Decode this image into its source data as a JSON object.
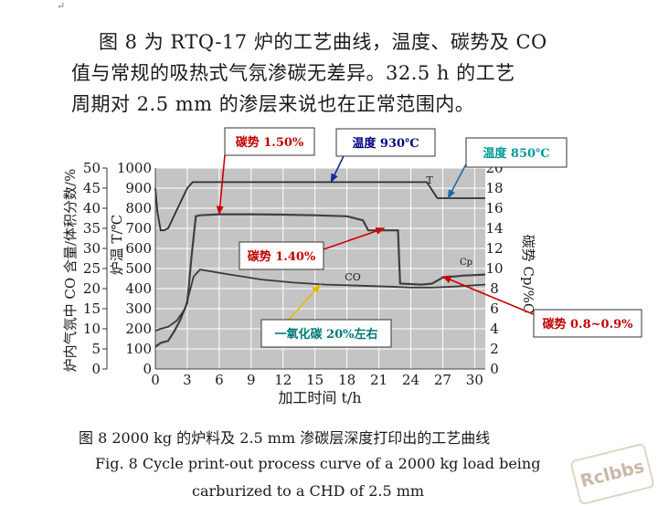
{
  "doc": {
    "para_mark": "↵",
    "lines": [
      "图 8 为 RTQ-17 炉的工艺曲线，温度、碳势及 CO",
      "值与常规的吸热式气氛渗碳无差异。32.5 h 的工艺",
      "周期对 2.5 mm 的渗层来说也在正常范围内。"
    ],
    "caption_cn": "图 8   2000 kg 的炉料及 2.5 mm 渗碳层深度打印出的工艺曲线",
    "caption_en_1": "Fig. 8   Cycle print-out process curve of a 2000 kg load being",
    "caption_en_2": "carburized to a CHD of 2.5 mm",
    "watermark": "Rclbbs"
  },
  "chart_data": {
    "type": "line",
    "xlabel": "加工时间 t/h",
    "ylabel_left_outer": "炉内气氛中 CO 含量/体积分数/%",
    "ylabel_left_inner": "炉温 T/℃",
    "ylabel_right": "碳势 Cp/%C",
    "x_ticks": [
      0,
      3,
      6,
      9,
      12,
      15,
      18,
      21,
      24,
      27,
      30
    ],
    "xlim": [
      0,
      31
    ],
    "y_temp_ticks": [
      0,
      100,
      200,
      300,
      400,
      500,
      600,
      700,
      800,
      900,
      1000
    ],
    "y_temp_lim": [
      0,
      1000
    ],
    "y_co_ticks": [
      0,
      5,
      10,
      15,
      20,
      25,
      30,
      35,
      40,
      45,
      50
    ],
    "y_co_lim": [
      0,
      50
    ],
    "y_cp_ticks": [
      0,
      2,
      4,
      6,
      8,
      10,
      12,
      14,
      16,
      18,
      20
    ],
    "y_cp_lim": [
      0,
      20
    ],
    "grid": true,
    "background": "#c4c4c4",
    "series": [
      {
        "name": "T",
        "axis": "temp",
        "color": "#303030",
        "x": [
          0,
          0.2,
          0.5,
          0.8,
          1.2,
          2.0,
          3.0,
          3.5,
          22.5,
          25.5,
          26.5,
          31
        ],
        "y": [
          900,
          780,
          690,
          690,
          700,
          790,
          900,
          930,
          930,
          930,
          850,
          850
        ]
      },
      {
        "name": "Cp",
        "axis": "temp",
        "color": "#404040",
        "x": [
          0,
          0.5,
          1.2,
          1.8,
          2.3,
          3.0,
          3.4,
          3.8,
          4.2,
          6,
          9,
          12,
          15,
          18,
          19.5,
          20,
          21,
          22.8,
          23,
          25,
          26,
          27,
          27.5,
          28,
          29,
          31
        ],
        "y": [
          110,
          130,
          140,
          190,
          240,
          330,
          560,
          760,
          765,
          770,
          770,
          768,
          765,
          760,
          740,
          690,
          690,
          690,
          425,
          420,
          425,
          455,
          460,
          460,
          465,
          470
        ]
      },
      {
        "name": "CO",
        "axis": "temp",
        "color": "#3a3a3a",
        "x": [
          0,
          0.5,
          1.2,
          2.0,
          2.8,
          3.6,
          4.2,
          7,
          10,
          13,
          16,
          19,
          22,
          24,
          26,
          28,
          31
        ],
        "y": [
          190,
          200,
          210,
          240,
          300,
          460,
          495,
          470,
          445,
          430,
          420,
          415,
          410,
          405,
          405,
          410,
          420
        ]
      }
    ],
    "series_labels": [
      "T",
      "CO",
      "Cp"
    ],
    "annotations": [
      {
        "text": "碳势 1.50%",
        "color": "#c00000",
        "target": [
          6.0,
          770
        ]
      },
      {
        "text": "温度 930℃",
        "color": "#000080",
        "target": [
          16.5,
          930
        ]
      },
      {
        "text": "温度 850℃",
        "color": "#009999",
        "target": [
          27.5,
          850
        ]
      },
      {
        "text": "碳势 1.40%",
        "color": "#c00000",
        "target": [
          21.5,
          700
        ]
      },
      {
        "text": "一氧化碳 20%左右",
        "color": "#007878",
        "target": [
          15.5,
          420
        ]
      },
      {
        "text": "碳势 0.8~0.9%",
        "color": "#c00000",
        "target": [
          27.0,
          460
        ]
      }
    ]
  }
}
